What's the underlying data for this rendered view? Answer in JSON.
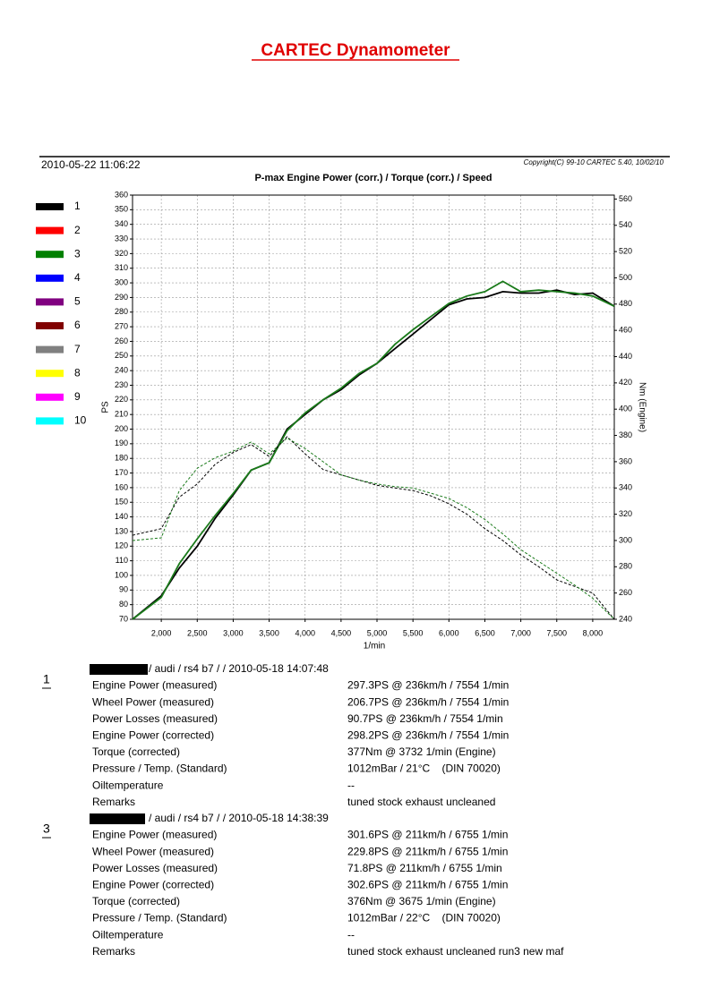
{
  "header": {
    "title": "CARTEC Dynamometer",
    "date": "2010-05-22 11:06:22",
    "copyright": "Copyright(C) 99-10 CARTEC 5.40, 10/02/10"
  },
  "chart_data": {
    "type": "line",
    "title": "P-max Engine Power (corr.) / Torque (corr.) / Speed",
    "y_label": "PS",
    "y2_label": "Nm (Engine)",
    "x_label": "1/min",
    "legend": [
      {
        "label": "1",
        "color": "#000000"
      },
      {
        "label": "2",
        "color": "#ff0000"
      },
      {
        "label": "3",
        "color": "#008000"
      },
      {
        "label": "4",
        "color": "#0000ff"
      },
      {
        "label": "5",
        "color": "#800080"
      },
      {
        "label": "6",
        "color": "#800000"
      },
      {
        "label": "7",
        "color": "#808080"
      },
      {
        "label": "8",
        "color": "#ffff00"
      },
      {
        "label": "9",
        "color": "#ff00ff"
      },
      {
        "label": "10",
        "color": "#00ffff"
      }
    ],
    "x": [
      1600,
      2000,
      2250,
      2500,
      2750,
      3000,
      3250,
      3500,
      3750,
      4000,
      4250,
      4500,
      4750,
      5000,
      5250,
      5500,
      5750,
      6000,
      6250,
      6500,
      6750,
      7000,
      7250,
      7500,
      7750,
      8000,
      8300
    ],
    "series": [
      {
        "color": "#000000",
        "style": "solid",
        "values": [
          70,
          86,
          105,
          120,
          139,
          155,
          172,
          177,
          200,
          210,
          220,
          227,
          237,
          245,
          255,
          265,
          275,
          285,
          289,
          290,
          294,
          293,
          293,
          295,
          292,
          293,
          284
        ]
      },
      {
        "color": "#1a7a1a",
        "style": "solid",
        "values": [
          70,
          85,
          108,
          125,
          141,
          156,
          172,
          177,
          199,
          211,
          220,
          228,
          238,
          245,
          258,
          268,
          277,
          286,
          291,
          294,
          301,
          294,
          295,
          294,
          293,
          291,
          284
        ]
      },
      {
        "color": "#000000",
        "style": "dashed",
        "axis": "y2",
        "values": [
          304,
          309,
          333,
          343,
          358,
          367,
          373,
          364,
          379,
          366,
          354,
          350,
          346,
          342,
          340,
          338,
          334,
          328,
          320,
          309,
          300,
          289,
          280,
          270,
          265,
          260,
          240
        ]
      },
      {
        "color": "#1a7a1a",
        "style": "dashed",
        "axis": "y2",
        "values": [
          300,
          302,
          338,
          355,
          363,
          368,
          375,
          366,
          378,
          370,
          360,
          350,
          346,
          343,
          341,
          340,
          336,
          332,
          325,
          316,
          305,
          293,
          284,
          275,
          266,
          256,
          240
        ]
      }
    ],
    "xlim": [
      1600,
      8300
    ],
    "xticks": [
      {
        "value": 2000,
        "label": "2,000"
      },
      {
        "value": 2500,
        "label": "2,500"
      },
      {
        "value": 3000,
        "label": "3,000"
      },
      {
        "value": 3500,
        "label": "3,500"
      },
      {
        "value": 4000,
        "label": "4,000"
      },
      {
        "value": 4500,
        "label": "4,500"
      },
      {
        "value": 5000,
        "label": "5,000"
      },
      {
        "value": 5500,
        "label": "5,500"
      },
      {
        "value": 6000,
        "label": "6,000"
      },
      {
        "value": 6500,
        "label": "6,500"
      },
      {
        "value": 7000,
        "label": "7,000"
      },
      {
        "value": 7500,
        "label": "7,500"
      },
      {
        "value": 8000,
        "label": "8,000"
      }
    ],
    "ylim": [
      70,
      360
    ],
    "yticks": [
      70,
      80,
      90,
      100,
      110,
      120,
      130,
      140,
      150,
      160,
      170,
      180,
      190,
      200,
      210,
      220,
      230,
      240,
      250,
      260,
      270,
      280,
      290,
      300,
      310,
      320,
      330,
      340,
      350,
      360
    ],
    "y2lim": [
      240,
      563
    ],
    "y2ticks": [
      240,
      260,
      280,
      300,
      320,
      340,
      360,
      380,
      400,
      420,
      440,
      460,
      480,
      500,
      520,
      540,
      560
    ],
    "grid": true
  },
  "runs": [
    {
      "number": "1",
      "header": "/ audi / rs4 b7 /  / 2010-05-18 14:07:48",
      "rows": [
        [
          "Engine Power (measured)",
          "297.3PS @ 236km/h / 7554 1/min"
        ],
        [
          "Wheel Power (measured)",
          "206.7PS @ 236km/h / 7554 1/min"
        ],
        [
          "Power Losses (measured)",
          "90.7PS @ 236km/h / 7554 1/min"
        ],
        [
          "Engine Power (corrected)",
          "298.2PS @ 236km/h / 7554 1/min"
        ],
        [
          "Torque (corrected)",
          "377Nm @ 3732 1/min (Engine)"
        ],
        [
          "Pressure / Temp. (Standard)",
          "1012mBar / 21°C    (DIN 70020)"
        ],
        [
          "Oiltemperature",
          "--"
        ],
        [
          "Remarks",
          "tuned stock exhaust uncleaned"
        ]
      ]
    },
    {
      "number": "3",
      "header": "/ audi / rs4 b7 /  / 2010-05-18 14:38:39",
      "rows": [
        [
          "Engine Power (measured)",
          "301.6PS @ 211km/h / 6755 1/min"
        ],
        [
          "Wheel Power (measured)",
          "229.8PS @ 211km/h / 6755 1/min"
        ],
        [
          "Power Losses (measured)",
          "71.8PS @ 211km/h / 6755 1/min"
        ],
        [
          "Engine Power (corrected)",
          "302.6PS @ 211km/h / 6755 1/min"
        ],
        [
          "Torque (corrected)",
          "376Nm @ 3675 1/min (Engine)"
        ],
        [
          "Pressure / Temp. (Standard)",
          "1012mBar / 22°C    (DIN 70020)"
        ],
        [
          "Oiltemperature",
          "--"
        ],
        [
          "Remarks",
          "tuned stock exhaust uncleaned run3 new maf"
        ]
      ]
    }
  ]
}
